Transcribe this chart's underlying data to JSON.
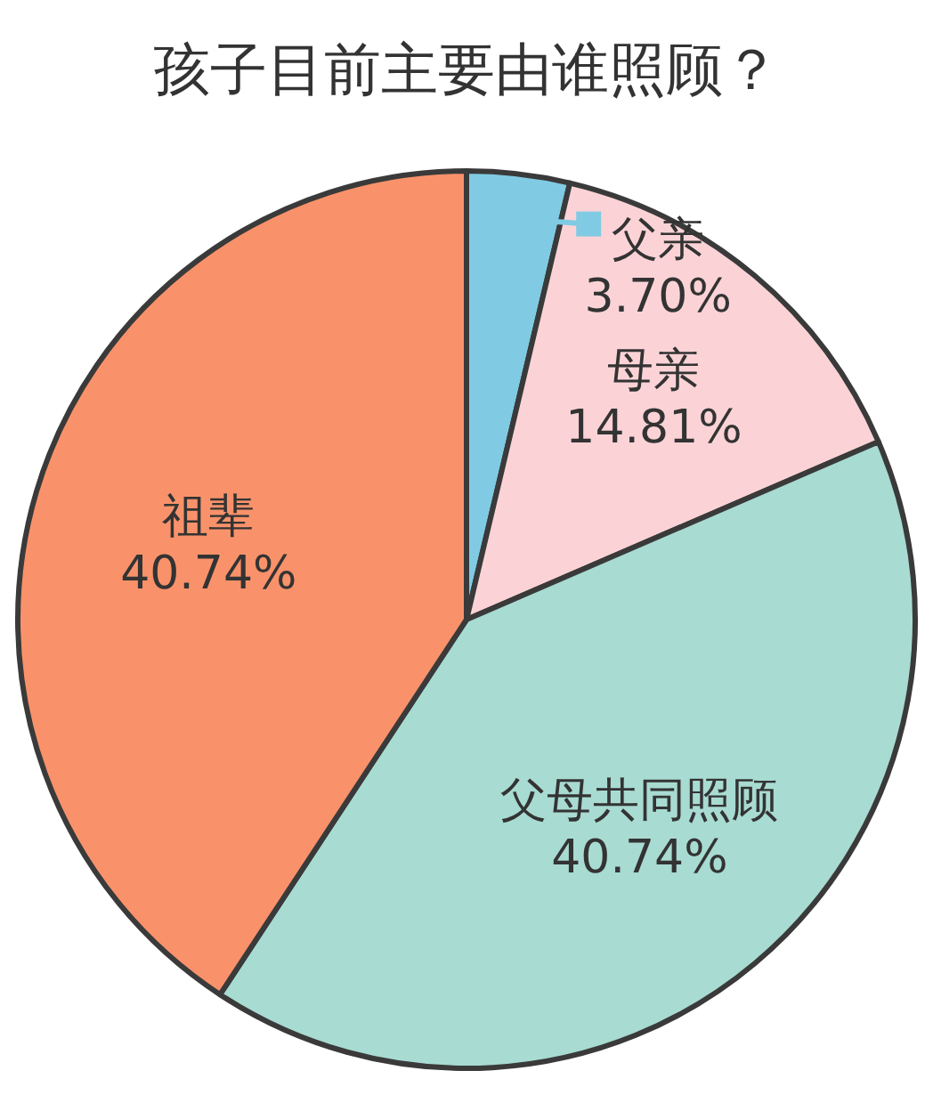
{
  "chart_data": {
    "type": "pie",
    "title": "孩子目前主要由谁照顾？",
    "categories": [
      "父亲",
      "母亲",
      "父母共同照顾",
      "祖辈"
    ],
    "values": [
      3.7,
      14.81,
      40.74,
      40.74
    ],
    "value_labels": [
      "3.70%",
      "14.81%",
      "40.74%",
      "40.74%"
    ],
    "colors": [
      "#80cbe3",
      "#fbd3d6",
      "#a8dbd2",
      "#f9926a"
    ]
  }
}
